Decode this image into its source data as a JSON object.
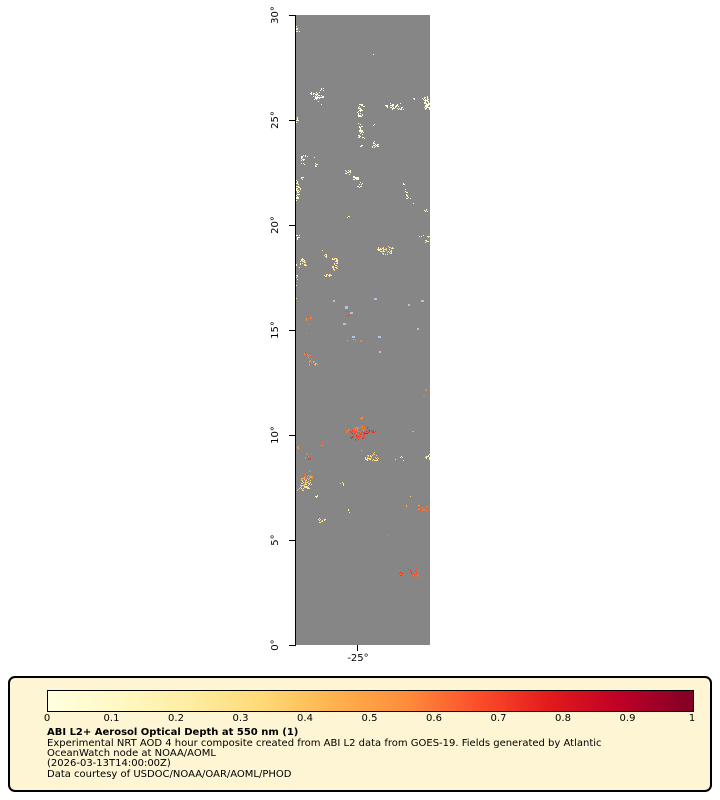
{
  "map": {
    "lat_ticks": [
      "30°",
      "25°",
      "20°",
      "15°",
      "10°",
      "5°",
      "0°"
    ],
    "lon_ticks": [
      "-25°"
    ],
    "nodata_color": "#868686",
    "water_dot_color": "#a9c7e3"
  },
  "colorbar": {
    "ticks": [
      "0",
      "0.1",
      "0.2",
      "0.3",
      "0.4",
      "0.5",
      "0.6",
      "0.7",
      "0.8",
      "0.9",
      "1"
    ],
    "stops": [
      "#ffffe0",
      "#fff8c4",
      "#feeda1",
      "#fed976",
      "#feb24c",
      "#fd8d3c",
      "#fc4e2a",
      "#e31a1c",
      "#bd0026",
      "#800026"
    ]
  },
  "legend": {
    "background": "#fdf5d4",
    "title": "ABI L2+ Aerosol Optical Depth at 550 nm (1)",
    "desc1": "Experimental NRT AOD 4 hour composite created from ABI L2 data from GOES-19. Fields generated by Atlantic",
    "desc2": "OceanWatch node at NOAA/AOML",
    "timestamp": "(2026-03-13T14:00:00Z)",
    "credit": "Data courtesy of USDOC/NOAA/OAR/AOML/PHOD"
  },
  "chart_data": {
    "type": "heatmap",
    "title": "ABI L2+ Aerosol Optical Depth at 550 nm (1)",
    "value_range": [
      0,
      1
    ],
    "colorbar_tick_values": [
      0,
      0.1,
      0.2,
      0.3,
      0.4,
      0.5,
      0.6,
      0.7,
      0.8,
      0.9,
      1
    ],
    "lat_tick_labels": [
      "0°",
      "5°",
      "10°",
      "15°",
      "20°",
      "25°",
      "30°"
    ],
    "lon_tick_labels": [
      "-25°"
    ],
    "colormap_stops": [
      "#ffffe0",
      "#fff8c4",
      "#feeda1",
      "#fed976",
      "#feb24c",
      "#fd8d3c",
      "#fc4e2a",
      "#e31a1c",
      "#bd0026",
      "#800026"
    ],
    "nodata_color": "#868686"
  }
}
